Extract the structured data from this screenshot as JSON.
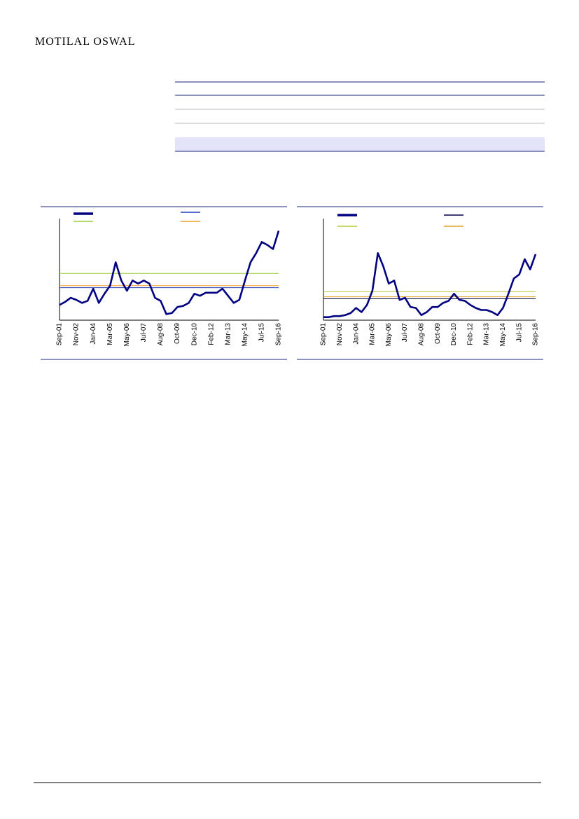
{
  "header": {
    "logo": "MOTILAL OSWAL"
  },
  "chart_data": [
    {
      "type": "line",
      "categories": [
        "Sep-01",
        null,
        null,
        "Nov-02",
        null,
        null,
        "Jan-04",
        null,
        null,
        "Mar-05",
        null,
        null,
        "May-06",
        null,
        null,
        "Jul-07",
        null,
        null,
        "Aug-08",
        null,
        null,
        "Oct-09",
        null,
        null,
        "Dec-10",
        null,
        null,
        "Feb-12",
        null,
        null,
        "Mar-13",
        null,
        null,
        "May-14",
        null,
        null,
        "Jul-15",
        null,
        null,
        "Sep-16"
      ],
      "series": [
        {
          "color": "#000080",
          "values": [
            15,
            18,
            22,
            20,
            17,
            19,
            31,
            17,
            26,
            34,
            57,
            39,
            29,
            39,
            36,
            39,
            36,
            22,
            19,
            6,
            7,
            13,
            14,
            17,
            26,
            24,
            27,
            27,
            27,
            31,
            24,
            17,
            20,
            39,
            57,
            66,
            77,
            74,
            70,
            88
          ]
        }
      ],
      "reference_lines": [
        {
          "color": "#1f3fbf",
          "value": 32
        },
        {
          "color": "#9acd32",
          "value": 46
        },
        {
          "color": "#f0a030",
          "value": 34
        }
      ],
      "ylim": [
        0,
        100
      ]
    },
    {
      "type": "line",
      "categories": [
        "Sep-01",
        null,
        null,
        "Nov-02",
        null,
        null,
        "Jan-04",
        null,
        null,
        "Mar-05",
        null,
        null,
        "May-06",
        null,
        null,
        "Jul-07",
        null,
        null,
        "Aug-08",
        null,
        null,
        "Oct-09",
        null,
        null,
        "Dec-10",
        null,
        null,
        "Feb-12",
        null,
        null,
        "Mar-13",
        null,
        null,
        "May-14",
        null,
        null,
        "Jul-15",
        null,
        null,
        "Sep-16"
      ],
      "series": [
        {
          "color": "#000080",
          "values": [
            3,
            3,
            4,
            4,
            5,
            7,
            12,
            8,
            15,
            29,
            66,
            53,
            36,
            39,
            20,
            22,
            13,
            12,
            5,
            8,
            13,
            13,
            17,
            19,
            26,
            20,
            19,
            15,
            12,
            10,
            10,
            8,
            5,
            12,
            26,
            41,
            45,
            60,
            50,
            65
          ]
        }
      ],
      "reference_lines": [
        {
          "color": "#000040",
          "value": 21
        },
        {
          "color": "#b5c930",
          "value": 28
        },
        {
          "color": "#e0a020",
          "value": 23
        }
      ],
      "ylim": [
        0,
        100
      ]
    }
  ]
}
